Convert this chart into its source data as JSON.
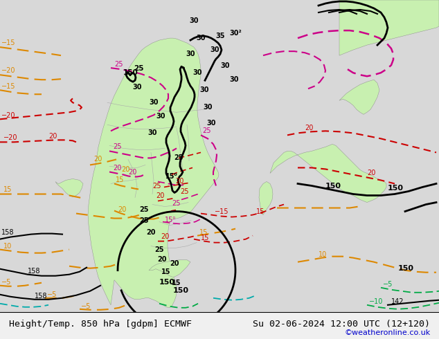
{
  "title_left": "Height/Temp. 850 hPa [gdpm] ECMWF",
  "title_right": "Su 02-06-2024 12:00 UTC (12+120)",
  "credit": "©weatheronline.co.uk",
  "bg_color": "#f0f0f0",
  "land_green": "#c8f0b0",
  "map_bg": "#e8e8e8",
  "fig_width": 6.34,
  "fig_height": 4.9,
  "dpi": 100,
  "bottom_bar_color": "#ffffff",
  "title_fontsize": 9.5,
  "credit_color": "#0000cc",
  "credit_fontsize": 8
}
